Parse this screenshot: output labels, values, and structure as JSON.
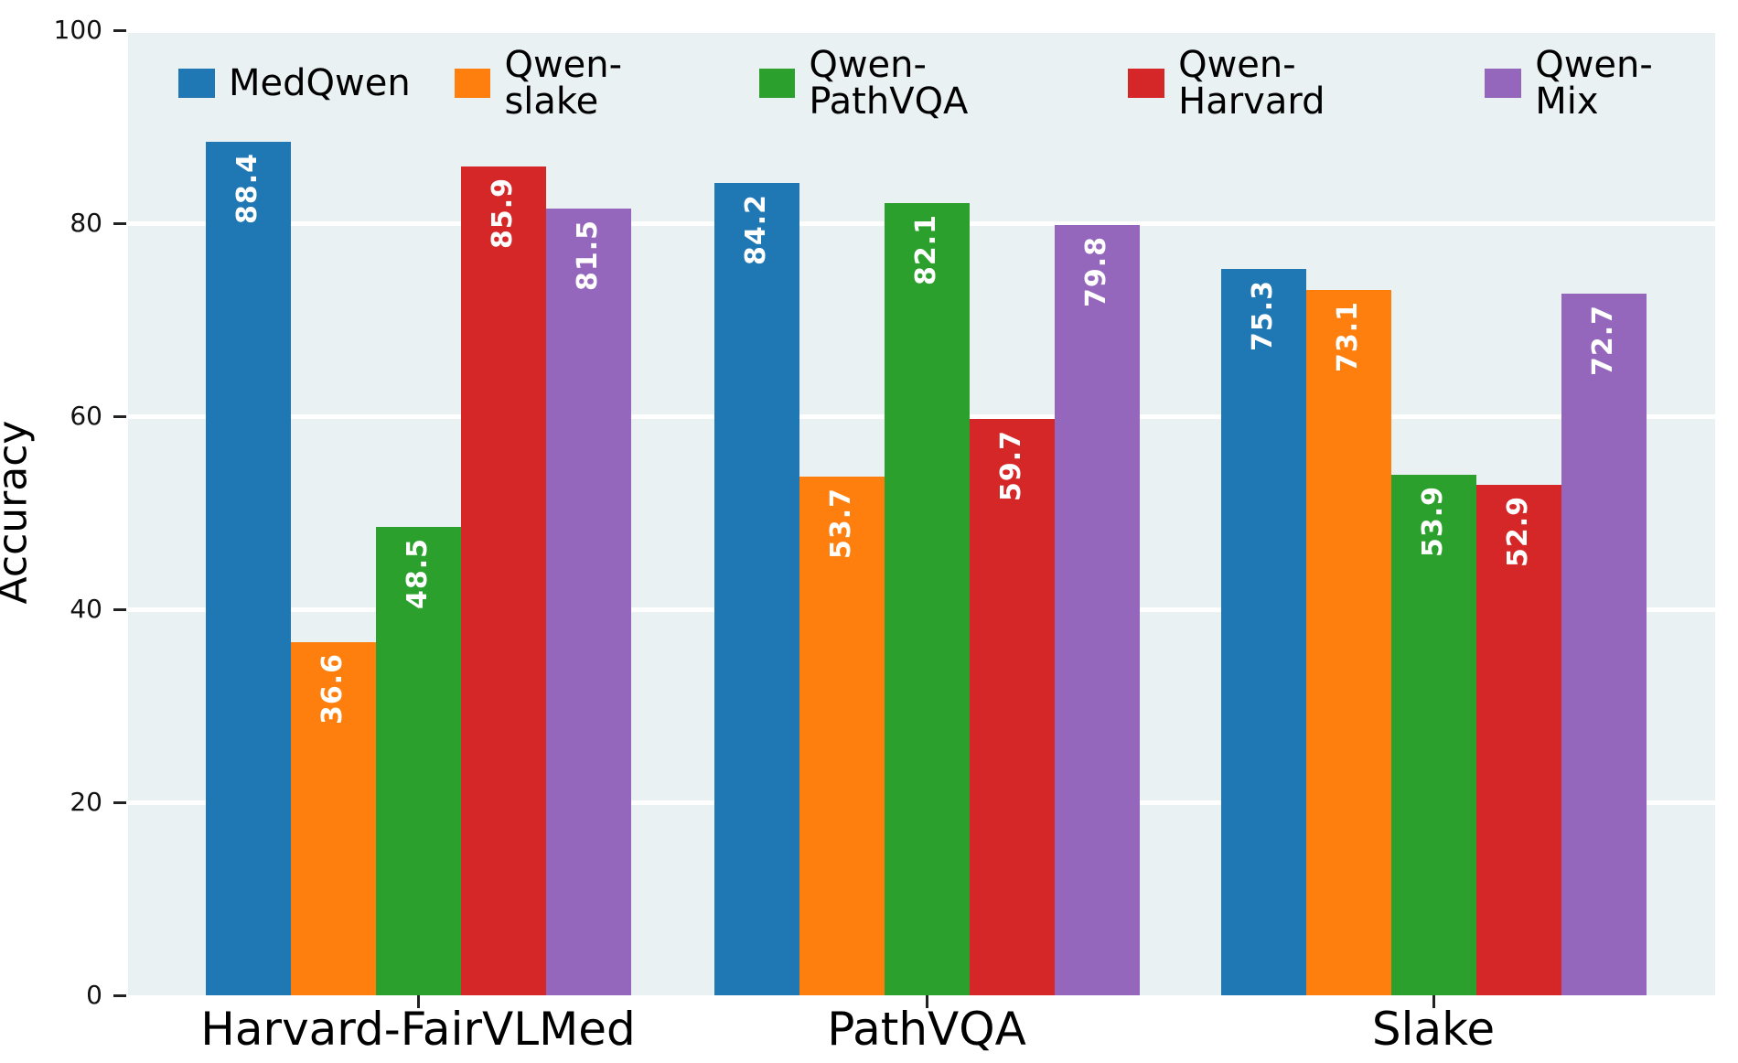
{
  "colors": {
    "plot_background": "#eaf1f3",
    "gridline": "#ffffff",
    "bar_value_text": "#ffffff",
    "tick_mark": "#222222",
    "text": "#000000"
  },
  "chart_data": {
    "type": "bar",
    "title": "",
    "xlabel": "",
    "ylabel": "Accuracy",
    "ylim": [
      0,
      100
    ],
    "yticks": [
      0,
      20,
      40,
      60,
      80,
      100
    ],
    "grid": "horizontal white gridlines on light blue-gray panel",
    "legend_position": "top-left inside plot, horizontal, no frame",
    "bar_value_labels": "inside bar top, rotated 90deg, white bold",
    "categories": [
      "Harvard-FairVLMed",
      "PathVQA",
      "Slake"
    ],
    "series": [
      {
        "name": "MedQwen",
        "color": "#1f77b4",
        "values": [
          88.4,
          84.2,
          75.3
        ]
      },
      {
        "name": "Qwen-slake",
        "color": "#ff7f0e",
        "values": [
          36.6,
          53.7,
          73.1
        ]
      },
      {
        "name": "Qwen-PathVQA",
        "color": "#2ca02c",
        "values": [
          48.5,
          82.1,
          53.9
        ]
      },
      {
        "name": "Qwen-Harvard",
        "color": "#d62728",
        "values": [
          85.9,
          59.7,
          52.9
        ]
      },
      {
        "name": "Qwen-Mix",
        "color": "#9467bd",
        "values": [
          81.5,
          79.8,
          72.7
        ]
      }
    ]
  }
}
